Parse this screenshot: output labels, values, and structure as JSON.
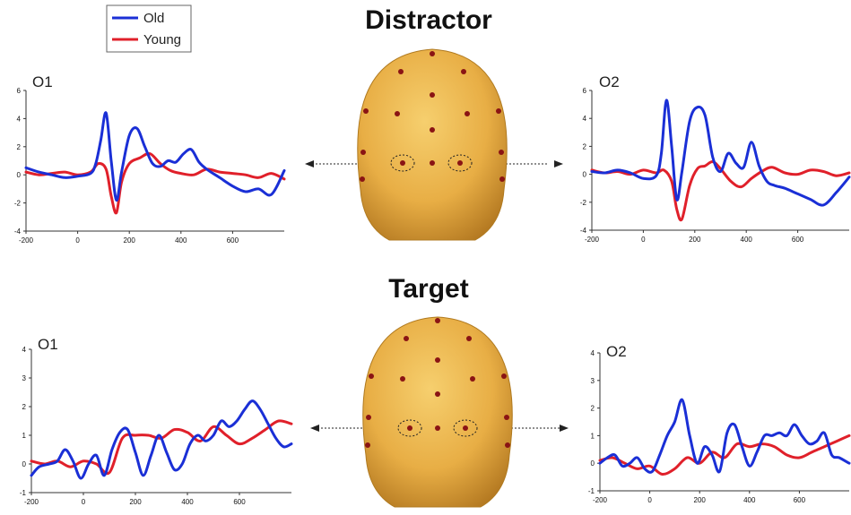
{
  "sections": [
    {
      "title": "Distractor"
    },
    {
      "title": "Target"
    }
  ],
  "legend": [
    {
      "label": "Old",
      "color": "#1a2fd6"
    },
    {
      "label": "Young",
      "color": "#e0202a"
    }
  ],
  "colors": {
    "old": "#1a2fd6",
    "young": "#e0202a",
    "head": "#e8ae45",
    "electrode": "#8a1414"
  },
  "chart_data": [
    {
      "type": "line",
      "section": "Distractor",
      "panel_label": "O1",
      "xlim": [
        -200,
        800
      ],
      "ylim": [
        -4,
        6
      ],
      "xticks": [
        -200,
        0,
        200,
        400,
        600
      ],
      "yticks": [
        -4,
        -2,
        0,
        2,
        4,
        6
      ],
      "series": [
        {
          "name": "Old",
          "x": [
            -200,
            -150,
            -100,
            -50,
            0,
            50,
            70,
            90,
            110,
            130,
            150,
            170,
            200,
            230,
            260,
            290,
            320,
            350,
            380,
            410,
            440,
            470,
            500,
            550,
            600,
            650,
            700,
            750,
            800
          ],
          "y": [
            0.5,
            0.2,
            0.0,
            -0.2,
            -0.1,
            0.1,
            0.8,
            2.5,
            4.4,
            1.0,
            -1.8,
            0.2,
            2.8,
            3.3,
            2.0,
            0.8,
            0.6,
            1.0,
            0.9,
            1.5,
            1.8,
            0.9,
            0.4,
            -0.2,
            -0.8,
            -1.2,
            -1.0,
            -1.4,
            0.3
          ]
        },
        {
          "name": "Young",
          "x": [
            -200,
            -150,
            -100,
            -50,
            0,
            50,
            80,
            110,
            130,
            150,
            170,
            200,
            240,
            280,
            320,
            360,
            400,
            450,
            500,
            550,
            600,
            650,
            700,
            750,
            800
          ],
          "y": [
            0.2,
            0.0,
            0.1,
            0.2,
            0.0,
            0.2,
            0.8,
            0.4,
            -1.5,
            -2.7,
            -0.5,
            0.8,
            1.2,
            1.5,
            0.8,
            0.3,
            0.1,
            0.0,
            0.4,
            0.2,
            0.1,
            0.0,
            -0.2,
            0.1,
            -0.3
          ]
        }
      ]
    },
    {
      "type": "line",
      "section": "Distractor",
      "panel_label": "O2",
      "xlim": [
        -200,
        800
      ],
      "ylim": [
        -4,
        6
      ],
      "xticks": [
        -200,
        0,
        200,
        400,
        600
      ],
      "yticks": [
        -4,
        -2,
        0,
        2,
        4,
        6
      ],
      "series": [
        {
          "name": "Old",
          "x": [
            -200,
            -150,
            -100,
            -50,
            0,
            50,
            70,
            90,
            110,
            130,
            150,
            180,
            210,
            240,
            270,
            300,
            330,
            360,
            390,
            420,
            450,
            480,
            510,
            550,
            600,
            650,
            700,
            750,
            800
          ],
          "y": [
            0.2,
            0.1,
            0.3,
            0.1,
            -0.3,
            -0.1,
            1.5,
            5.3,
            2.0,
            -1.8,
            0.2,
            3.8,
            4.8,
            4.2,
            1.2,
            0.2,
            1.5,
            0.8,
            0.5,
            2.3,
            0.6,
            -0.5,
            -0.8,
            -1.0,
            -1.4,
            -1.8,
            -2.2,
            -1.3,
            -0.2
          ]
        },
        {
          "name": "Young",
          "x": [
            -200,
            -150,
            -100,
            -50,
            0,
            50,
            80,
            110,
            130,
            150,
            180,
            210,
            240,
            270,
            300,
            340,
            380,
            420,
            460,
            500,
            550,
            600,
            650,
            700,
            750,
            800
          ],
          "y": [
            0.3,
            0.1,
            0.2,
            0.0,
            0.3,
            0.1,
            0.3,
            -0.5,
            -2.5,
            -3.2,
            -0.8,
            0.4,
            0.6,
            0.9,
            0.4,
            -0.5,
            -0.9,
            -0.3,
            0.2,
            0.5,
            0.1,
            0.0,
            0.3,
            0.2,
            -0.1,
            0.1
          ]
        }
      ]
    },
    {
      "type": "line",
      "section": "Target",
      "panel_label": "O1",
      "xlim": [
        -200,
        800
      ],
      "ylim": [
        -1,
        4
      ],
      "xticks": [
        -200,
        0,
        200,
        400,
        600
      ],
      "yticks": [
        -1,
        0,
        1,
        2,
        3,
        4
      ],
      "series": [
        {
          "name": "Old",
          "x": [
            -200,
            -170,
            -130,
            -100,
            -70,
            -40,
            -10,
            20,
            50,
            80,
            110,
            140,
            170,
            200,
            230,
            260,
            290,
            320,
            350,
            380,
            410,
            440,
            470,
            500,
            530,
            560,
            590,
            620,
            650,
            680,
            710,
            740,
            770,
            800
          ],
          "y": [
            -0.4,
            -0.1,
            0.0,
            0.1,
            0.5,
            0.1,
            -0.5,
            0.0,
            0.3,
            -0.4,
            0.5,
            1.1,
            1.2,
            0.4,
            -0.4,
            0.3,
            1.0,
            0.4,
            -0.2,
            0.0,
            0.7,
            1.0,
            0.8,
            1.0,
            1.5,
            1.3,
            1.5,
            1.9,
            2.2,
            1.9,
            1.4,
            0.9,
            0.6,
            0.7
          ]
        },
        {
          "name": "Young",
          "x": [
            -200,
            -150,
            -100,
            -50,
            0,
            50,
            100,
            150,
            200,
            250,
            300,
            350,
            400,
            450,
            500,
            550,
            600,
            650,
            700,
            750,
            800
          ],
          "y": [
            0.1,
            0.0,
            0.1,
            -0.1,
            0.1,
            0.0,
            -0.3,
            0.9,
            1.0,
            1.0,
            0.9,
            1.2,
            1.1,
            0.8,
            1.3,
            1.0,
            0.7,
            0.9,
            1.2,
            1.5,
            1.4
          ]
        }
      ]
    },
    {
      "type": "line",
      "section": "Target",
      "panel_label": "O2",
      "xlim": [
        -200,
        800
      ],
      "ylim": [
        -1,
        4
      ],
      "xticks": [
        -200,
        0,
        200,
        400,
        600
      ],
      "yticks": [
        -1,
        0,
        1,
        2,
        3,
        4
      ],
      "series": [
        {
          "name": "Old",
          "x": [
            -200,
            -170,
            -140,
            -110,
            -80,
            -50,
            -20,
            10,
            40,
            70,
            100,
            130,
            160,
            190,
            220,
            250,
            280,
            310,
            340,
            370,
            400,
            430,
            460,
            490,
            520,
            550,
            580,
            610,
            640,
            670,
            700,
            730,
            760,
            800
          ],
          "y": [
            0.0,
            0.2,
            0.3,
            -0.1,
            0.0,
            0.2,
            -0.2,
            -0.3,
            0.3,
            1.0,
            1.5,
            2.3,
            1.0,
            0.0,
            0.6,
            0.3,
            -0.3,
            1.1,
            1.4,
            0.6,
            -0.1,
            0.4,
            1.0,
            1.0,
            1.1,
            1.0,
            1.4,
            1.0,
            0.7,
            0.8,
            1.1,
            0.3,
            0.2,
            0.0
          ]
        },
        {
          "name": "Young",
          "x": [
            -200,
            -150,
            -100,
            -50,
            0,
            50,
            100,
            150,
            200,
            250,
            300,
            350,
            400,
            450,
            500,
            550,
            600,
            650,
            700,
            750,
            800
          ],
          "y": [
            0.1,
            0.2,
            0.0,
            -0.2,
            -0.1,
            -0.4,
            -0.2,
            0.2,
            0.0,
            0.4,
            0.2,
            0.7,
            0.6,
            0.7,
            0.6,
            0.3,
            0.2,
            0.4,
            0.6,
            0.8,
            1.0
          ]
        }
      ]
    }
  ]
}
